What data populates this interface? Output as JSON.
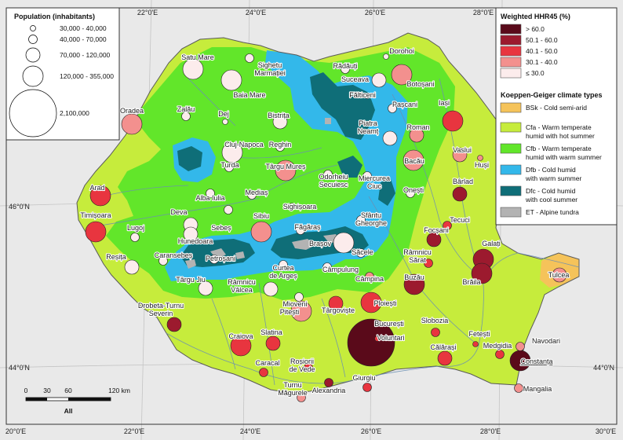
{
  "frame": {
    "lon_ticks": [
      "20°0'E",
      "22°0'E",
      "24°0'E",
      "26°0'E",
      "28°0'E",
      "30°0'E"
    ],
    "top_lon_ticks": [
      "22°0'E",
      "24°0'E",
      "26°0'E",
      "28°0'E"
    ],
    "lat_ticks": [
      "46°0'N",
      "44°0'N"
    ]
  },
  "population_legend": {
    "title": "Population (inhabitants)",
    "classes": [
      "30,000 - 40,000",
      "40,000 - 70,000",
      "70,000 - 120,000",
      "120,000 - 355,000",
      "2,100,000"
    ]
  },
  "hhr_legend": {
    "title": "Weighted HHR45 (%)",
    "classes": [
      {
        "label": "> 60.0",
        "color": "#5a0a1a"
      },
      {
        "label": "50.1 - 60.0",
        "color": "#9c1a2e"
      },
      {
        "label": "40.1 - 50.0",
        "color": "#e8353f"
      },
      {
        "label": "30.1 - 40.0",
        "color": "#f3908e"
      },
      {
        "label": "≤ 30.0",
        "color": "#fcecec"
      }
    ]
  },
  "climate_legend": {
    "title": "Koeppen-Geiger climate types",
    "classes": [
      {
        "code": "BSk",
        "line1": "BSk - Cold semi-arid",
        "line2": "",
        "color": "#f5c35a"
      },
      {
        "code": "Cfa",
        "line1": "Cfa - Warm temperate",
        "line2": "humid with hot summer",
        "color": "#c6ec3c"
      },
      {
        "code": "Cfb",
        "line1": "Cfb - Warm temperate",
        "line2": "humid with warm summer",
        "color": "#62e62a"
      },
      {
        "code": "Dfb",
        "line1": "Dfb - Cold humid",
        "line2": "with warm summer",
        "color": "#33b8ea"
      },
      {
        "code": "Dfc",
        "line1": "Dfc - Cold humid",
        "line2": "with cool summer",
        "color": "#0f6e78"
      },
      {
        "code": "ET",
        "line1": "ET - Alpine tundra",
        "line2": "",
        "color": "#b3b3b3"
      }
    ]
  },
  "scale_bar": {
    "labels": [
      "0",
      "30",
      "60",
      "120 km"
    ],
    "caption": "All"
  },
  "cities": [
    {
      "name": "Satu Mare",
      "cls": 4,
      "size": 3
    },
    {
      "name": "Sighetu Marmației",
      "cls": 4,
      "size": 1
    },
    {
      "name": "Baia Mare",
      "cls": 4,
      "size": 3
    },
    {
      "name": "Rădăuți",
      "cls": 4,
      "size": 1
    },
    {
      "name": "Dorohoi",
      "cls": 4,
      "size": 0
    },
    {
      "name": "Suceava",
      "cls": 4,
      "size": 2
    },
    {
      "name": "Botoșani",
      "cls": 3,
      "size": 3
    },
    {
      "name": "Fălticeni",
      "cls": 4,
      "size": 0
    },
    {
      "name": "Pașcani",
      "cls": 4,
      "size": 1
    },
    {
      "name": "Iași",
      "cls": 2,
      "size": 3
    },
    {
      "name": "Oradea",
      "cls": 3,
      "size": 3
    },
    {
      "name": "Zalău",
      "cls": 4,
      "size": 1
    },
    {
      "name": "Dej",
      "cls": 4,
      "size": 0
    },
    {
      "name": "Bistrița",
      "cls": 4,
      "size": 2
    },
    {
      "name": "Piatra Neamț",
      "cls": 4,
      "size": 2
    },
    {
      "name": "Roman",
      "cls": 3,
      "size": 2
    },
    {
      "name": "Vaslui",
      "cls": 3,
      "size": 2
    },
    {
      "name": "Huși",
      "cls": 3,
      "size": 0
    },
    {
      "name": "Bacău",
      "cls": 3,
      "size": 3
    },
    {
      "name": "Cluj-Napoca",
      "cls": 4,
      "size": 3
    },
    {
      "name": "Reghin",
      "cls": 4,
      "size": 1
    },
    {
      "name": "Turda",
      "cls": 4,
      "size": 1
    },
    {
      "name": "Târgu Mureș",
      "cls": 3,
      "size": 3
    },
    {
      "name": "Odorheiu Secuiesc",
      "cls": 4,
      "size": 1
    },
    {
      "name": "Miercurea Ciuc",
      "cls": 4,
      "size": 1
    },
    {
      "name": "Onești",
      "cls": 4,
      "size": 1
    },
    {
      "name": "Bârlad",
      "cls": 1,
      "size": 2
    },
    {
      "name": "Arad",
      "cls": 2,
      "size": 3
    },
    {
      "name": "Alba Iulia",
      "cls": 4,
      "size": 1
    },
    {
      "name": "Mediaș",
      "cls": 4,
      "size": 1
    },
    {
      "name": "Sighișoara",
      "cls": 4,
      "size": 0
    },
    {
      "name": "Timișoara",
      "cls": 2,
      "size": 3
    },
    {
      "name": "Deva",
      "cls": 4,
      "size": 2
    },
    {
      "name": "Sebeș",
      "cls": 4,
      "size": 1
    },
    {
      "name": "Sibiu",
      "cls": 3,
      "size": 3
    },
    {
      "name": "Făgăraș",
      "cls": 4,
      "size": 1
    },
    {
      "name": "Sfântu Gheorghe",
      "cls": 4,
      "size": 1
    },
    {
      "name": "Tecuci",
      "cls": 2,
      "size": 1
    },
    {
      "name": "Lugoj",
      "cls": 4,
      "size": 1
    },
    {
      "name": "Hunedoara",
      "cls": 4,
      "size": 2
    },
    {
      "name": "Brașov",
      "cls": 4,
      "size": 3
    },
    {
      "name": "Săcele",
      "cls": 4,
      "size": 1
    },
    {
      "name": "Focșani",
      "cls": 1,
      "size": 2
    },
    {
      "name": "Galați",
      "cls": 1,
      "size": 3
    },
    {
      "name": "Reșița",
      "cls": 4,
      "size": 2
    },
    {
      "name": "Caransebeș",
      "cls": 4,
      "size": 1
    },
    {
      "name": "Petroșani",
      "cls": 4,
      "size": 1
    },
    {
      "name": "Curtea de Argeș",
      "cls": 4,
      "size": 1
    },
    {
      "name": "Câmpulung",
      "cls": 4,
      "size": 1
    },
    {
      "name": "Râmnicu Sărat",
      "cls": 2,
      "size": 1
    },
    {
      "name": "Brăila",
      "cls": 1,
      "size": 3
    },
    {
      "name": "Tulcea",
      "cls": 3,
      "size": 2
    },
    {
      "name": "Târgu Jiu",
      "cls": 4,
      "size": 2
    },
    {
      "name": "Râmnicu Vâlcea",
      "cls": 4,
      "size": 2
    },
    {
      "name": "Câmpina",
      "cls": 3,
      "size": 1
    },
    {
      "name": "Buzău",
      "cls": 1,
      "size": 3
    },
    {
      "name": "Drobeta-Turnu Severin",
      "cls": 1,
      "size": 2
    },
    {
      "name": "Mioveni",
      "cls": 4,
      "size": 1
    },
    {
      "name": "Pitești",
      "cls": 3,
      "size": 3
    },
    {
      "name": "Târgoviște",
      "cls": 2,
      "size": 2
    },
    {
      "name": "Ploiești",
      "cls": 2,
      "size": 3
    },
    {
      "name": "Slatina",
      "cls": 2,
      "size": 2
    },
    {
      "name": "Slobozia",
      "cls": 2,
      "size": 1
    },
    {
      "name": "Fetești",
      "cls": 2,
      "size": 0
    },
    {
      "name": "București",
      "cls": 0,
      "size": 4
    },
    {
      "name": "Voluntari",
      "cls": 2,
      "size": 0
    },
    {
      "name": "Craiova",
      "cls": 2,
      "size": 3
    },
    {
      "name": "Călărași",
      "cls": 2,
      "size": 2
    },
    {
      "name": "Medgidia",
      "cls": 2,
      "size": 1
    },
    {
      "name": "Navodari",
      "cls": 3,
      "size": 1
    },
    {
      "name": "Caracal",
      "cls": 2,
      "size": 1
    },
    {
      "name": "Roșiorii de Vede",
      "cls": 2,
      "size": 1
    },
    {
      "name": "Constanța",
      "cls": 0,
      "size": 3
    },
    {
      "name": "Alexandria",
      "cls": 1,
      "size": 1
    },
    {
      "name": "Giurgiu",
      "cls": 2,
      "size": 1
    },
    {
      "name": "Turnu Măgurele",
      "cls": 3,
      "size": 1
    },
    {
      "name": "Mangalia",
      "cls": 3,
      "size": 1
    }
  ]
}
